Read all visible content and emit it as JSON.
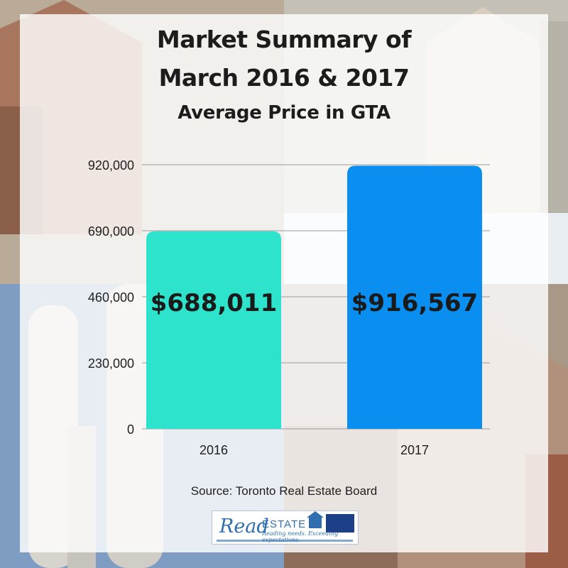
{
  "header": {
    "title_line1": "Market Summary of",
    "title_line2": "March 2016 & 2017",
    "subtitle": "Average Price in GTA"
  },
  "chart_data": {
    "type": "bar",
    "categories": [
      "2016",
      "2017"
    ],
    "values": [
      688011,
      916567
    ],
    "data_labels": [
      "$688,011",
      "$916,567"
    ],
    "bar_colors": [
      "#2de3cc",
      "#0a8ff0"
    ],
    "yticks": [
      "0",
      "230,000",
      "460,000",
      "690,000",
      "920,000"
    ],
    "ylim": [
      0,
      920000
    ],
    "grid": true,
    "title": "Average Price in GTA",
    "xlabel": "",
    "ylabel": ""
  },
  "source": {
    "text": "Source: Toronto Real Estate Board"
  },
  "logo": {
    "word": "Read",
    "estate": "ESTATE",
    "tagline": "Reading needs. Exceeding expectations."
  },
  "colors": {
    "text": "#1c1c1c",
    "gridline": "#9a9a9a",
    "panel": "rgba(255,255,255,0.82)"
  }
}
